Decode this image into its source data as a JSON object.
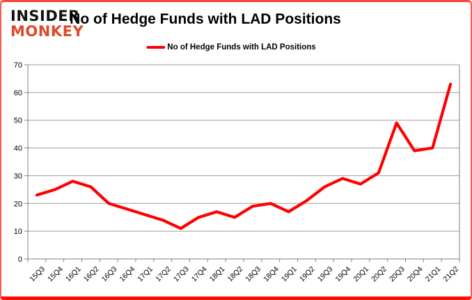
{
  "header": {
    "logo_line1": "INSIDER",
    "logo_line2": "MONKEY",
    "title": "No of Hedge Funds with LAD Positions"
  },
  "legend": {
    "label": "No of Hedge Funds with LAD Positions"
  },
  "colors": {
    "series": "#fe0000",
    "logo_accent": "#dc4a2e",
    "grid": "#9b9b9b",
    "axis": "#7f7f7f",
    "tick_label": "#000000",
    "frame_border": "#fe0d00"
  },
  "chart_data": {
    "type": "line",
    "title": "No of Hedge Funds with LAD Positions",
    "categories": [
      "15Q3",
      "15Q4",
      "16Q1",
      "16Q2",
      "16Q3",
      "16Q4",
      "17Q1",
      "17Q2",
      "17Q3",
      "17Q4",
      "18Q1",
      "18Q2",
      "18Q3",
      "18Q4",
      "19Q1",
      "19Q2",
      "19Q3",
      "19Q4",
      "20Q1",
      "20Q2",
      "20Q3",
      "20Q4",
      "21Q1",
      "21Q2"
    ],
    "values": [
      23,
      25,
      28,
      26,
      20,
      18,
      16,
      14,
      11,
      15,
      17,
      15,
      19,
      20,
      17,
      21,
      26,
      29,
      27,
      31,
      49,
      39,
      40,
      63
    ],
    "series_name": "No of Hedge Funds with LAD Positions",
    "xlabel": "",
    "ylabel": "",
    "ylim": [
      0,
      70
    ],
    "yticks": [
      0,
      10,
      20,
      30,
      40,
      50,
      60,
      70
    ],
    "grid": true,
    "legend_position": "top-center",
    "line_width": 4.2
  }
}
